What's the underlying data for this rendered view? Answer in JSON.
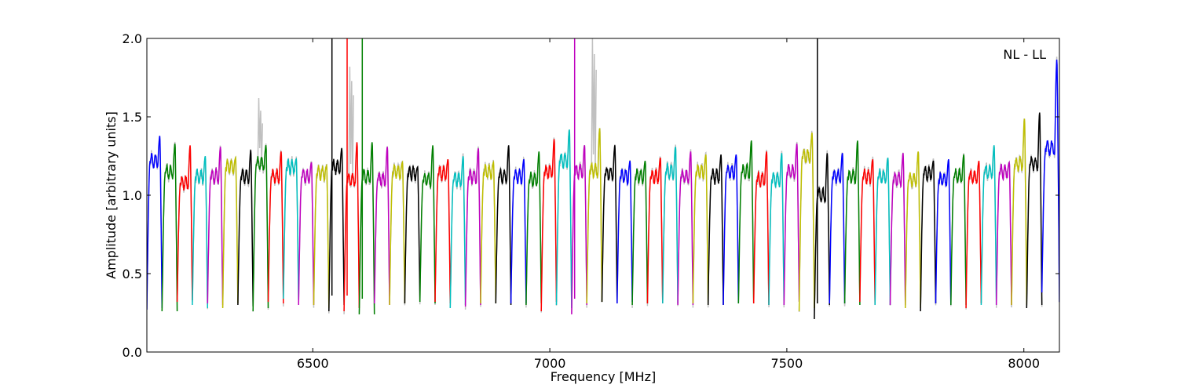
{
  "chart_data": {
    "type": "line",
    "title": "",
    "annotation": "NL - LL",
    "xlabel": "Frequency [MHz]",
    "ylabel": "Amplitude [arbitrary units]",
    "xlim": [
      6150,
      8075
    ],
    "ylim": [
      0,
      2.0
    ],
    "x_ticks": [
      6500,
      7000,
      7500,
      8000
    ],
    "x_tick_labels": [
      "6500",
      "7000",
      "7500",
      "8000"
    ],
    "y_ticks": [
      0.0,
      0.5,
      1.0,
      1.5,
      2.0
    ],
    "y_tick_labels": [
      "0.0",
      "0.5",
      "1.0",
      "1.5",
      "2.0"
    ],
    "grid": false,
    "legend": "none",
    "channel_width_mhz": 32,
    "channel_start_mhz": 6150,
    "color_cycle": [
      "#0000ff",
      "#008000",
      "#ff0000",
      "#00bfbf",
      "#bf00bf",
      "#bfbf00",
      "#000000"
    ],
    "raw_data_color": "#c0c0c0",
    "series": [
      {
        "x_start": 6150,
        "x_end": 6182,
        "color": "#0000ff",
        "edge_low": 0.27,
        "edge_high": 0.28,
        "peak": 1.38,
        "plateau": 1.22
      },
      {
        "x_start": 6182,
        "x_end": 6214,
        "color": "#008000",
        "edge_low": 0.26,
        "edge_high": 0.26,
        "peak": 1.33,
        "plateau": 1.15
      },
      {
        "x_start": 6214,
        "x_end": 6246,
        "color": "#ff0000",
        "edge_low": 0.32,
        "edge_high": 0.33,
        "peak": 1.32,
        "plateau": 1.08
      },
      {
        "x_start": 6246,
        "x_end": 6278,
        "color": "#00bfbf",
        "edge_low": 0.3,
        "edge_high": 0.28,
        "peak": 1.25,
        "plateau": 1.12
      },
      {
        "x_start": 6278,
        "x_end": 6310,
        "color": "#bf00bf",
        "edge_low": 0.31,
        "edge_high": 0.3,
        "peak": 1.31,
        "plateau": 1.12
      },
      {
        "x_start": 6310,
        "x_end": 6342,
        "color": "#bfbf00",
        "edge_low": 0.28,
        "edge_high": 0.31,
        "peak": 1.24,
        "plateau": 1.18
      },
      {
        "x_start": 6342,
        "x_end": 6374,
        "color": "#000000",
        "edge_low": 0.3,
        "edge_high": 0.29,
        "peak": 1.29,
        "plateau": 1.12
      },
      {
        "x_start": 6374,
        "x_end": 6406,
        "color": "#008000",
        "edge_low": 0.26,
        "edge_high": 0.28,
        "peak": 1.32,
        "plateau": 1.2,
        "raw_spike": 1.62
      },
      {
        "x_start": 6406,
        "x_end": 6438,
        "color": "#ff0000",
        "edge_low": 0.32,
        "edge_high": 0.31,
        "peak": 1.28,
        "plateau": 1.12
      },
      {
        "x_start": 6438,
        "x_end": 6470,
        "color": "#00bfbf",
        "edge_low": 0.34,
        "edge_high": 0.33,
        "peak": 1.23,
        "plateau": 1.18
      },
      {
        "x_start": 6470,
        "x_end": 6502,
        "color": "#bf00bf",
        "edge_low": 0.3,
        "edge_high": 0.3,
        "peak": 1.21,
        "plateau": 1.12
      },
      {
        "x_start": 6502,
        "x_end": 6534,
        "color": "#bfbf00",
        "edge_low": 0.3,
        "edge_high": 0.28,
        "peak": 1.19,
        "plateau": 1.14
      },
      {
        "x_start": 6534,
        "x_end": 6566,
        "color": "#000000",
        "edge_low": 0.26,
        "edge_high": 0.3,
        "peak": 1.3,
        "plateau": 1.18,
        "spike": 2.0
      },
      {
        "x_start": 6566,
        "x_end": 6598,
        "color": "#ff0000",
        "edge_low": 0.26,
        "edge_high": 0.28,
        "peak": 1.34,
        "plateau": 1.1,
        "spike": 2.0,
        "raw_spike": 1.82
      },
      {
        "x_start": 6598,
        "x_end": 6630,
        "color": "#008000",
        "edge_low": 0.24,
        "edge_high": 0.24,
        "peak": 1.34,
        "plateau": 1.12,
        "spike": 2.0
      },
      {
        "x_start": 6630,
        "x_end": 6662,
        "color": "#bf00bf",
        "edge_low": 0.31,
        "edge_high": 0.3,
        "peak": 1.31,
        "plateau": 1.1
      },
      {
        "x_start": 6662,
        "x_end": 6694,
        "color": "#bfbf00",
        "edge_low": 0.3,
        "edge_high": 0.31,
        "peak": 1.21,
        "plateau": 1.15
      },
      {
        "x_start": 6694,
        "x_end": 6726,
        "color": "#000000",
        "edge_low": 0.31,
        "edge_high": 0.32,
        "peak": 1.18,
        "plateau": 1.14
      },
      {
        "x_start": 6726,
        "x_end": 6758,
        "color": "#008000",
        "edge_low": 0.32,
        "edge_high": 0.31,
        "peak": 1.32,
        "plateau": 1.1
      },
      {
        "x_start": 6758,
        "x_end": 6790,
        "color": "#ff0000",
        "edge_low": 0.32,
        "edge_high": 0.31,
        "peak": 1.23,
        "plateau": 1.14
      },
      {
        "x_start": 6790,
        "x_end": 6822,
        "color": "#00bfbf",
        "edge_low": 0.28,
        "edge_high": 0.3,
        "peak": 1.25,
        "plateau": 1.1
      },
      {
        "x_start": 6822,
        "x_end": 6854,
        "color": "#bf00bf",
        "edge_low": 0.29,
        "edge_high": 0.3,
        "peak": 1.3,
        "plateau": 1.12
      },
      {
        "x_start": 6854,
        "x_end": 6886,
        "color": "#bfbf00",
        "edge_low": 0.31,
        "edge_high": 0.31,
        "peak": 1.21,
        "plateau": 1.15
      },
      {
        "x_start": 6886,
        "x_end": 6918,
        "color": "#000000",
        "edge_low": 0.31,
        "edge_high": 0.3,
        "peak": 1.32,
        "plateau": 1.12
      },
      {
        "x_start": 6918,
        "x_end": 6950,
        "color": "#0000ff",
        "edge_low": 0.31,
        "edge_high": 0.31,
        "peak": 1.23,
        "plateau": 1.12
      },
      {
        "x_start": 6950,
        "x_end": 6982,
        "color": "#008000",
        "edge_low": 0.3,
        "edge_high": 0.31,
        "peak": 1.28,
        "plateau": 1.1
      },
      {
        "x_start": 6982,
        "x_end": 7014,
        "color": "#ff0000",
        "edge_low": 0.26,
        "edge_high": 0.32,
        "peak": 1.36,
        "plateau": 1.15
      },
      {
        "x_start": 7014,
        "x_end": 7046,
        "color": "#00bfbf",
        "edge_low": 0.3,
        "edge_high": 0.28,
        "peak": 1.42,
        "plateau": 1.22
      },
      {
        "x_start": 7046,
        "x_end": 7078,
        "color": "#bf00bf",
        "edge_low": 0.24,
        "edge_high": 0.3,
        "peak": 1.32,
        "plateau": 1.15,
        "spike": 2.0
      },
      {
        "x_start": 7078,
        "x_end": 7110,
        "color": "#bfbf00",
        "edge_low": 0.31,
        "edge_high": 0.32,
        "peak": 1.43,
        "plateau": 1.16,
        "raw_spike": 2.0
      },
      {
        "x_start": 7110,
        "x_end": 7142,
        "color": "#000000",
        "edge_low": 0.32,
        "edge_high": 0.31,
        "peak": 1.32,
        "plateau": 1.14
      },
      {
        "x_start": 7142,
        "x_end": 7174,
        "color": "#0000ff",
        "edge_low": 0.31,
        "edge_high": 0.32,
        "peak": 1.22,
        "plateau": 1.12
      },
      {
        "x_start": 7174,
        "x_end": 7206,
        "color": "#008000",
        "edge_low": 0.3,
        "edge_high": 0.31,
        "peak": 1.22,
        "plateau": 1.12
      },
      {
        "x_start": 7206,
        "x_end": 7238,
        "color": "#ff0000",
        "edge_low": 0.31,
        "edge_high": 0.31,
        "peak": 1.24,
        "plateau": 1.12
      },
      {
        "x_start": 7238,
        "x_end": 7270,
        "color": "#00bfbf",
        "edge_low": 0.31,
        "edge_high": 0.31,
        "peak": 1.31,
        "plateau": 1.15
      },
      {
        "x_start": 7270,
        "x_end": 7302,
        "color": "#bf00bf",
        "edge_low": 0.3,
        "edge_high": 0.3,
        "peak": 1.28,
        "plateau": 1.12
      },
      {
        "x_start": 7302,
        "x_end": 7334,
        "color": "#bfbf00",
        "edge_low": 0.31,
        "edge_high": 0.3,
        "peak": 1.26,
        "plateau": 1.15
      },
      {
        "x_start": 7334,
        "x_end": 7366,
        "color": "#000000",
        "edge_low": 0.3,
        "edge_high": 0.3,
        "peak": 1.26,
        "plateau": 1.12
      },
      {
        "x_start": 7366,
        "x_end": 7398,
        "color": "#0000ff",
        "edge_low": 0.3,
        "edge_high": 0.31,
        "peak": 1.26,
        "plateau": 1.15
      },
      {
        "x_start": 7398,
        "x_end": 7430,
        "color": "#008000",
        "edge_low": 0.31,
        "edge_high": 0.31,
        "peak": 1.35,
        "plateau": 1.15
      },
      {
        "x_start": 7430,
        "x_end": 7462,
        "color": "#ff0000",
        "edge_low": 0.31,
        "edge_high": 0.3,
        "peak": 1.28,
        "plateau": 1.1
      },
      {
        "x_start": 7462,
        "x_end": 7494,
        "color": "#00bfbf",
        "edge_low": 0.3,
        "edge_high": 0.3,
        "peak": 1.27,
        "plateau": 1.1
      },
      {
        "x_start": 7494,
        "x_end": 7526,
        "color": "#bf00bf",
        "edge_low": 0.3,
        "edge_high": 0.32,
        "peak": 1.33,
        "plateau": 1.15
      },
      {
        "x_start": 7526,
        "x_end": 7558,
        "color": "#bfbf00",
        "edge_low": 0.26,
        "edge_high": 0.28,
        "peak": 1.4,
        "plateau": 1.25
      },
      {
        "x_start": 7558,
        "x_end": 7590,
        "color": "#000000",
        "edge_low": 0.21,
        "edge_high": 0.3,
        "peak": 1.27,
        "plateau": 1.0,
        "spike": 2.0
      },
      {
        "x_start": 7590,
        "x_end": 7622,
        "color": "#0000ff",
        "edge_low": 0.31,
        "edge_high": 0.31,
        "peak": 1.27,
        "plateau": 1.12
      },
      {
        "x_start": 7622,
        "x_end": 7654,
        "color": "#008000",
        "edge_low": 0.31,
        "edge_high": 0.3,
        "peak": 1.35,
        "plateau": 1.12
      },
      {
        "x_start": 7654,
        "x_end": 7686,
        "color": "#ff0000",
        "edge_low": 0.32,
        "edge_high": 0.31,
        "peak": 1.23,
        "plateau": 1.12
      },
      {
        "x_start": 7686,
        "x_end": 7718,
        "color": "#00bfbf",
        "edge_low": 0.3,
        "edge_high": 0.3,
        "peak": 1.24,
        "plateau": 1.12
      },
      {
        "x_start": 7718,
        "x_end": 7750,
        "color": "#bf00bf",
        "edge_low": 0.3,
        "edge_high": 0.3,
        "peak": 1.27,
        "plateau": 1.1
      },
      {
        "x_start": 7750,
        "x_end": 7782,
        "color": "#bfbf00",
        "edge_low": 0.28,
        "edge_high": 0.28,
        "peak": 1.28,
        "plateau": 1.1
      },
      {
        "x_start": 7782,
        "x_end": 7814,
        "color": "#000000",
        "edge_low": 0.26,
        "edge_high": 0.31,
        "peak": 1.22,
        "plateau": 1.14
      },
      {
        "x_start": 7814,
        "x_end": 7846,
        "color": "#0000ff",
        "edge_low": 0.31,
        "edge_high": 0.3,
        "peak": 1.23,
        "plateau": 1.1
      },
      {
        "x_start": 7846,
        "x_end": 7878,
        "color": "#008000",
        "edge_low": 0.3,
        "edge_high": 0.3,
        "peak": 1.26,
        "plateau": 1.12
      },
      {
        "x_start": 7878,
        "x_end": 7910,
        "color": "#ff0000",
        "edge_low": 0.28,
        "edge_high": 0.31,
        "peak": 1.22,
        "plateau": 1.12
      },
      {
        "x_start": 7910,
        "x_end": 7942,
        "color": "#00bfbf",
        "edge_low": 0.3,
        "edge_high": 0.3,
        "peak": 1.32,
        "plateau": 1.15
      },
      {
        "x_start": 7942,
        "x_end": 7974,
        "color": "#bf00bf",
        "edge_low": 0.3,
        "edge_high": 0.3,
        "peak": 1.21,
        "plateau": 1.15
      },
      {
        "x_start": 7974,
        "x_end": 8006,
        "color": "#bfbf00",
        "edge_low": 0.3,
        "edge_high": 0.3,
        "peak": 1.49,
        "plateau": 1.2
      },
      {
        "x_start": 8006,
        "x_end": 8038,
        "color": "#000000",
        "edge_low": 0.28,
        "edge_high": 0.3,
        "peak": 1.53,
        "plateau": 1.2
      },
      {
        "x_start": 8038,
        "x_end": 8075,
        "color": "#0000ff",
        "edge_low": 0.38,
        "edge_high": 0.32,
        "peak": 1.87,
        "plateau": 1.3
      }
    ]
  }
}
